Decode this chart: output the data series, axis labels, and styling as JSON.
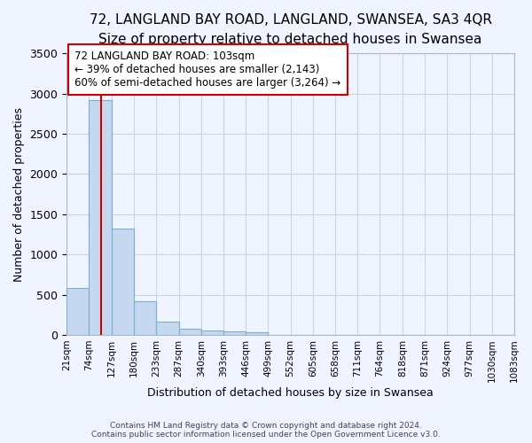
{
  "title": "72, LANGLAND BAY ROAD, LANGLAND, SWANSEA, SA3 4QR",
  "subtitle": "Size of property relative to detached houses in Swansea",
  "xlabel": "Distribution of detached houses by size in Swansea",
  "ylabel": "Number of detached properties",
  "bin_edges": [
    21,
    74,
    127,
    180,
    233,
    287,
    340,
    393,
    446,
    499,
    552,
    605,
    658,
    711,
    764,
    818,
    871,
    924,
    977,
    1030,
    1083
  ],
  "bar_heights": [
    580,
    2920,
    1320,
    420,
    170,
    75,
    50,
    40,
    35,
    0,
    0,
    0,
    0,
    0,
    0,
    0,
    0,
    0,
    0,
    0
  ],
  "bar_color": "#c5d8ef",
  "bar_edge_color": "#7ab0d4",
  "red_line_x": 103,
  "annotation_line1": "72 LANGLAND BAY ROAD: 103sqm",
  "annotation_line2": "← 39% of detached houses are smaller (2,143)",
  "annotation_line3": "60% of semi-detached houses are larger (3,264) →",
  "annotation_box_color": "#ffffff",
  "annotation_border_color": "#cc0000",
  "footer_line1": "Contains HM Land Registry data © Crown copyright and database right 2024.",
  "footer_line2": "Contains public sector information licensed under the Open Government Licence v3.0.",
  "bg_color": "#f0f4ff",
  "grid_color": "#c8d4e8",
  "ylim": [
    0,
    3500
  ],
  "title_fontsize": 11,
  "subtitle_fontsize": 10,
  "ylabel_fontsize": 9,
  "xlabel_fontsize": 9
}
